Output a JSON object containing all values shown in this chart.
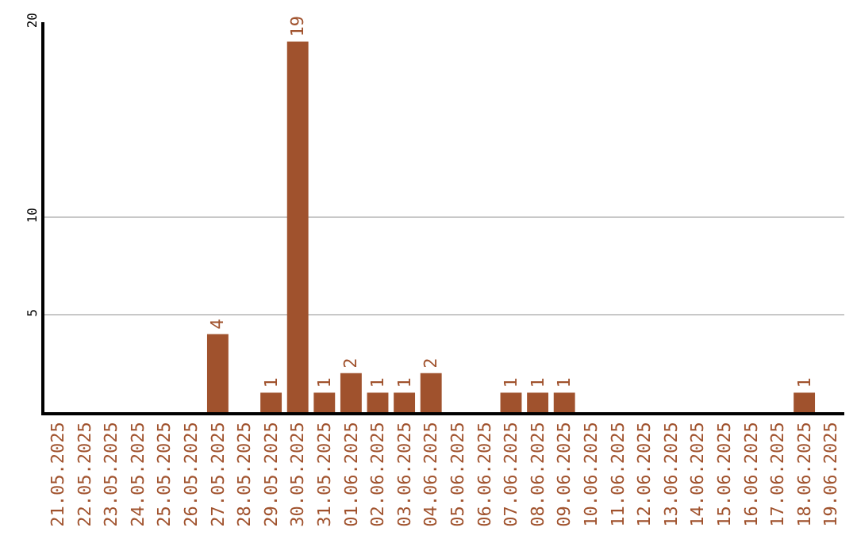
{
  "chart_data": {
    "type": "bar",
    "categories": [
      "21.05.2025",
      "22.05.2025",
      "23.05.2025",
      "24.05.2025",
      "25.05.2025",
      "26.05.2025",
      "27.05.2025",
      "28.05.2025",
      "29.05.2025",
      "30.05.2025",
      "31.05.2025",
      "01.06.2025",
      "02.06.2025",
      "03.06.2025",
      "04.06.2025",
      "05.06.2025",
      "06.06.2025",
      "07.06.2025",
      "08.06.2025",
      "09.06.2025",
      "10.06.2025",
      "11.06.2025",
      "12.06.2025",
      "13.06.2025",
      "14.06.2025",
      "15.06.2025",
      "16.06.2025",
      "17.06.2025",
      "18.06.2025",
      "19.06.2025"
    ],
    "values": [
      0,
      0,
      0,
      0,
      0,
      0,
      4,
      0,
      1,
      19,
      1,
      2,
      1,
      1,
      2,
      0,
      0,
      1,
      1,
      1,
      0,
      0,
      0,
      0,
      0,
      0,
      0,
      0,
      1,
      0
    ],
    "value_labels": [
      null,
      null,
      null,
      null,
      null,
      null,
      "4",
      null,
      "1",
      "19",
      "1",
      "2",
      "1",
      "1",
      "2",
      null,
      null,
      "1",
      "1",
      "1",
      null,
      null,
      null,
      null,
      null,
      null,
      null,
      null,
      "1",
      null
    ],
    "color": "#a0522d",
    "ylim": [
      0,
      20
    ],
    "yticks": [
      5,
      10,
      20
    ],
    "grid": "y",
    "legend": false
  }
}
